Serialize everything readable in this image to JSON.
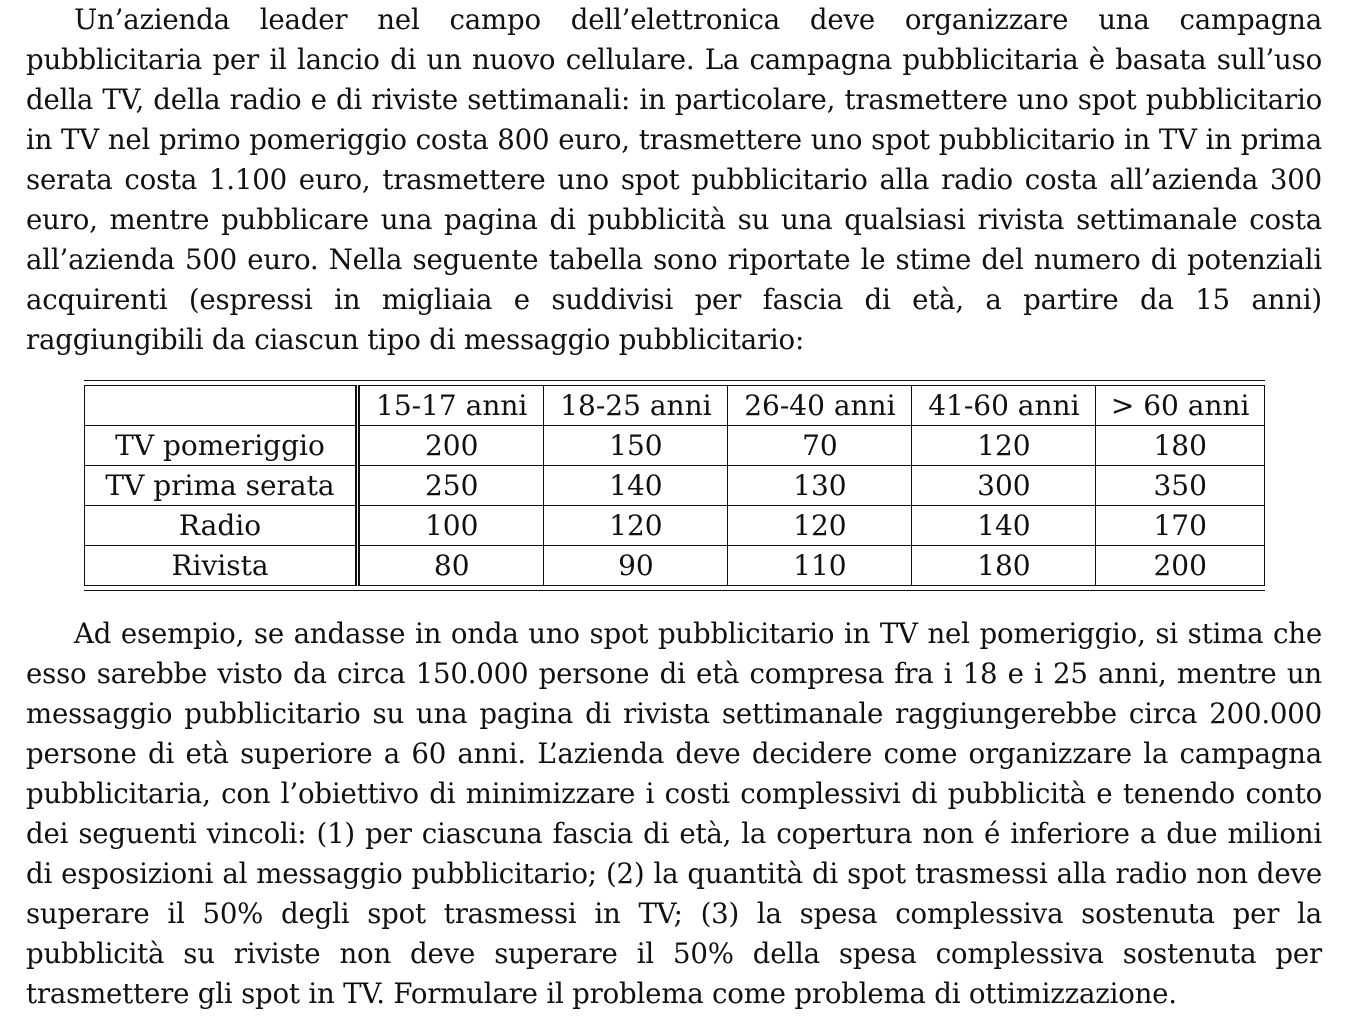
{
  "paragraph_1": "Un’azienda leader nel campo dell’elettronica deve organizzare una campagna pubblicitaria per il lancio di un nuovo cellulare. La campagna pubblicitaria è basata sull’uso della TV, della radio e di riviste settimanali: in particolare, trasmettere uno spot pubblicitario in TV nel primo pomeriggio costa 800 euro, trasmettere uno spot pubblicitario in TV in prima serata costa 1.100 euro, trasmettere uno spot pubblicitario alla radio costa all’azienda 300 euro, mentre pubblicare una pagina di pubblicità su una qualsiasi rivista settimanale costa all’azienda 500 euro. Nella seguente tabella sono riportate le stime del numero di potenziali acquirenti (espressi in migliaia e suddivisi per fascia di età, a partire da 15 anni) raggiungibili da ciascun tipo di messaggio pubblicitario:",
  "table": {
    "headers": [
      "15-17 anni",
      "18-25 anni",
      "26-40 anni",
      "41-60 anni",
      "> 60 anni"
    ],
    "rows": [
      {
        "label": "TV pomeriggio",
        "values": [
          "200",
          "150",
          "70",
          "120",
          "180"
        ]
      },
      {
        "label": "TV prima serata",
        "values": [
          "250",
          "140",
          "130",
          "300",
          "350"
        ]
      },
      {
        "label": "Radio",
        "values": [
          "100",
          "120",
          "120",
          "140",
          "170"
        ]
      },
      {
        "label": "Rivista",
        "values": [
          "80",
          "90",
          "110",
          "180",
          "200"
        ]
      }
    ]
  },
  "paragraph_2": "Ad esempio, se andasse in onda uno spot pubblicitario in TV nel pomeriggio, si stima che esso sarebbe visto da circa 150.000 persone di età compresa fra i 18 e i 25 anni, mentre un messaggio pubblicitario su una pagina di rivista settimanale raggiungerebbe circa 200.000 persone di età superiore a 60 anni. L’azienda deve decidere come organizzare la campagna pubblicitaria, con l’obiettivo di minimizzare i costi complessivi di pubblicità e tenendo conto dei seguenti vincoli: (1) per ciascuna fascia di età, la copertura non é inferiore a due milioni di esposizioni al messaggio pubblicitario; (2) la quantità di spot trasmessi alla radio non deve superare il 50% degli spot trasmessi in TV; (3) la spesa complessiva sostenuta per la pubblicità su riviste non deve superare il 50% della spesa complessiva sostenuta per trasmettere gli spot in TV. Formulare il problema come problema di ottimizzazione."
}
